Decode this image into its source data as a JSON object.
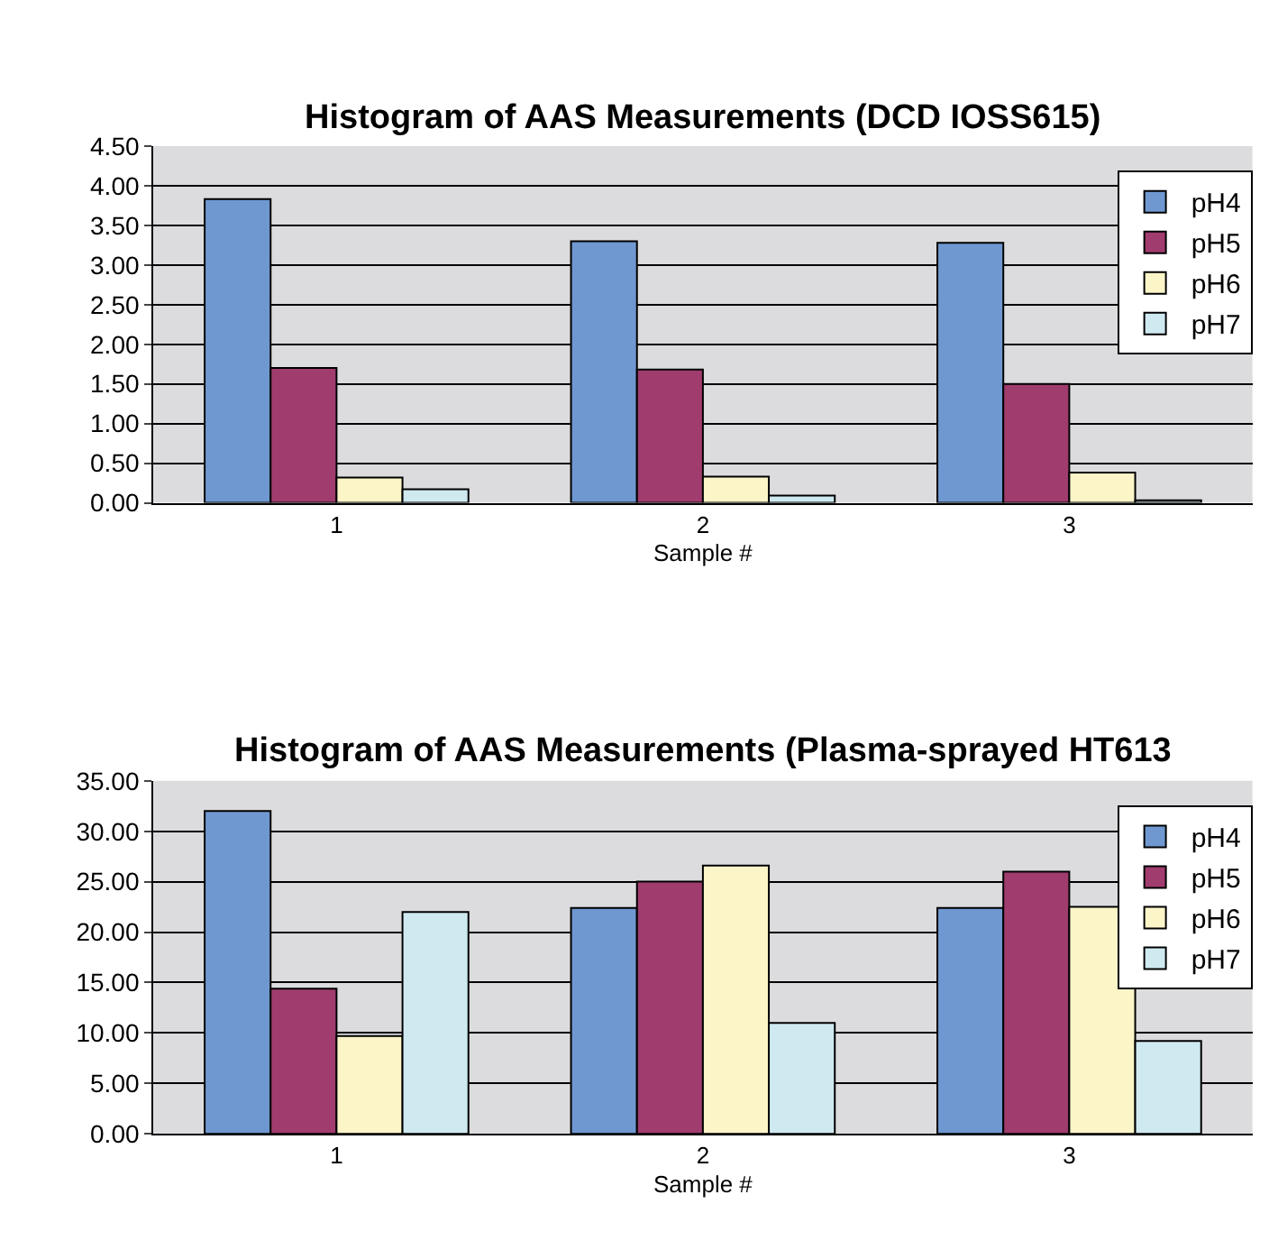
{
  "chart_data": [
    {
      "type": "bar",
      "title": "Histogram of AAS Measurements (DCD IOSS615)",
      "xlabel": "Sample #",
      "categories": [
        "1",
        "2",
        "3"
      ],
      "series": [
        {
          "name": "pH4",
          "color": "#6f98d0",
          "values": [
            3.83,
            3.3,
            3.28
          ]
        },
        {
          "name": "pH5",
          "color": "#a03c6e",
          "values": [
            1.7,
            1.68,
            1.5
          ]
        },
        {
          "name": "pH6",
          "color": "#fbf5c8",
          "values": [
            0.32,
            0.33,
            0.38
          ]
        },
        {
          "name": "pH7",
          "color": "#cfe9f1",
          "values": [
            0.17,
            0.09,
            0.03
          ]
        }
      ],
      "ylim": [
        0,
        4.5
      ],
      "yticks": [
        {
          "value": 0,
          "label": "0.00"
        },
        {
          "value": 0.5,
          "label": "0.50"
        },
        {
          "value": 1,
          "label": "1.00"
        },
        {
          "value": 1.5,
          "label": "1.50"
        },
        {
          "value": 2,
          "label": "2.00"
        },
        {
          "value": 2.5,
          "label": "2.50"
        },
        {
          "value": 3,
          "label": "3.00"
        },
        {
          "value": 3.5,
          "label": "3.50"
        },
        {
          "value": 4,
          "label": "4.00"
        },
        {
          "value": 4.5,
          "label": "4.50"
        }
      ],
      "grid": "y",
      "legend": "top right"
    },
    {
      "type": "bar",
      "title": "Histogram of AAS Measurements (Plasma-sprayed HT613",
      "xlabel": "Sample #",
      "categories": [
        "1",
        "2",
        "3"
      ],
      "series": [
        {
          "name": "pH4",
          "color": "#6f98d0",
          "values": [
            32.0,
            22.4,
            22.4
          ]
        },
        {
          "name": "pH5",
          "color": "#a03c6e",
          "values": [
            14.4,
            25.0,
            26.0
          ]
        },
        {
          "name": "pH6",
          "color": "#fbf5c8",
          "values": [
            9.7,
            26.6,
            22.5
          ]
        },
        {
          "name": "pH7",
          "color": "#cfe9f1",
          "values": [
            22.0,
            11.0,
            9.2
          ]
        }
      ],
      "ylim": [
        0,
        35
      ],
      "yticks": [
        {
          "value": 0,
          "label": "0.00"
        },
        {
          "value": 5,
          "label": "5.00"
        },
        {
          "value": 10,
          "label": "10.00"
        },
        {
          "value": 15,
          "label": "15.00"
        },
        {
          "value": 20,
          "label": "20.00"
        },
        {
          "value": 25,
          "label": "25.00"
        },
        {
          "value": 30,
          "label": "30.00"
        },
        {
          "value": 35,
          "label": "35.00"
        }
      ],
      "grid": "y",
      "legend": "top right"
    }
  ]
}
